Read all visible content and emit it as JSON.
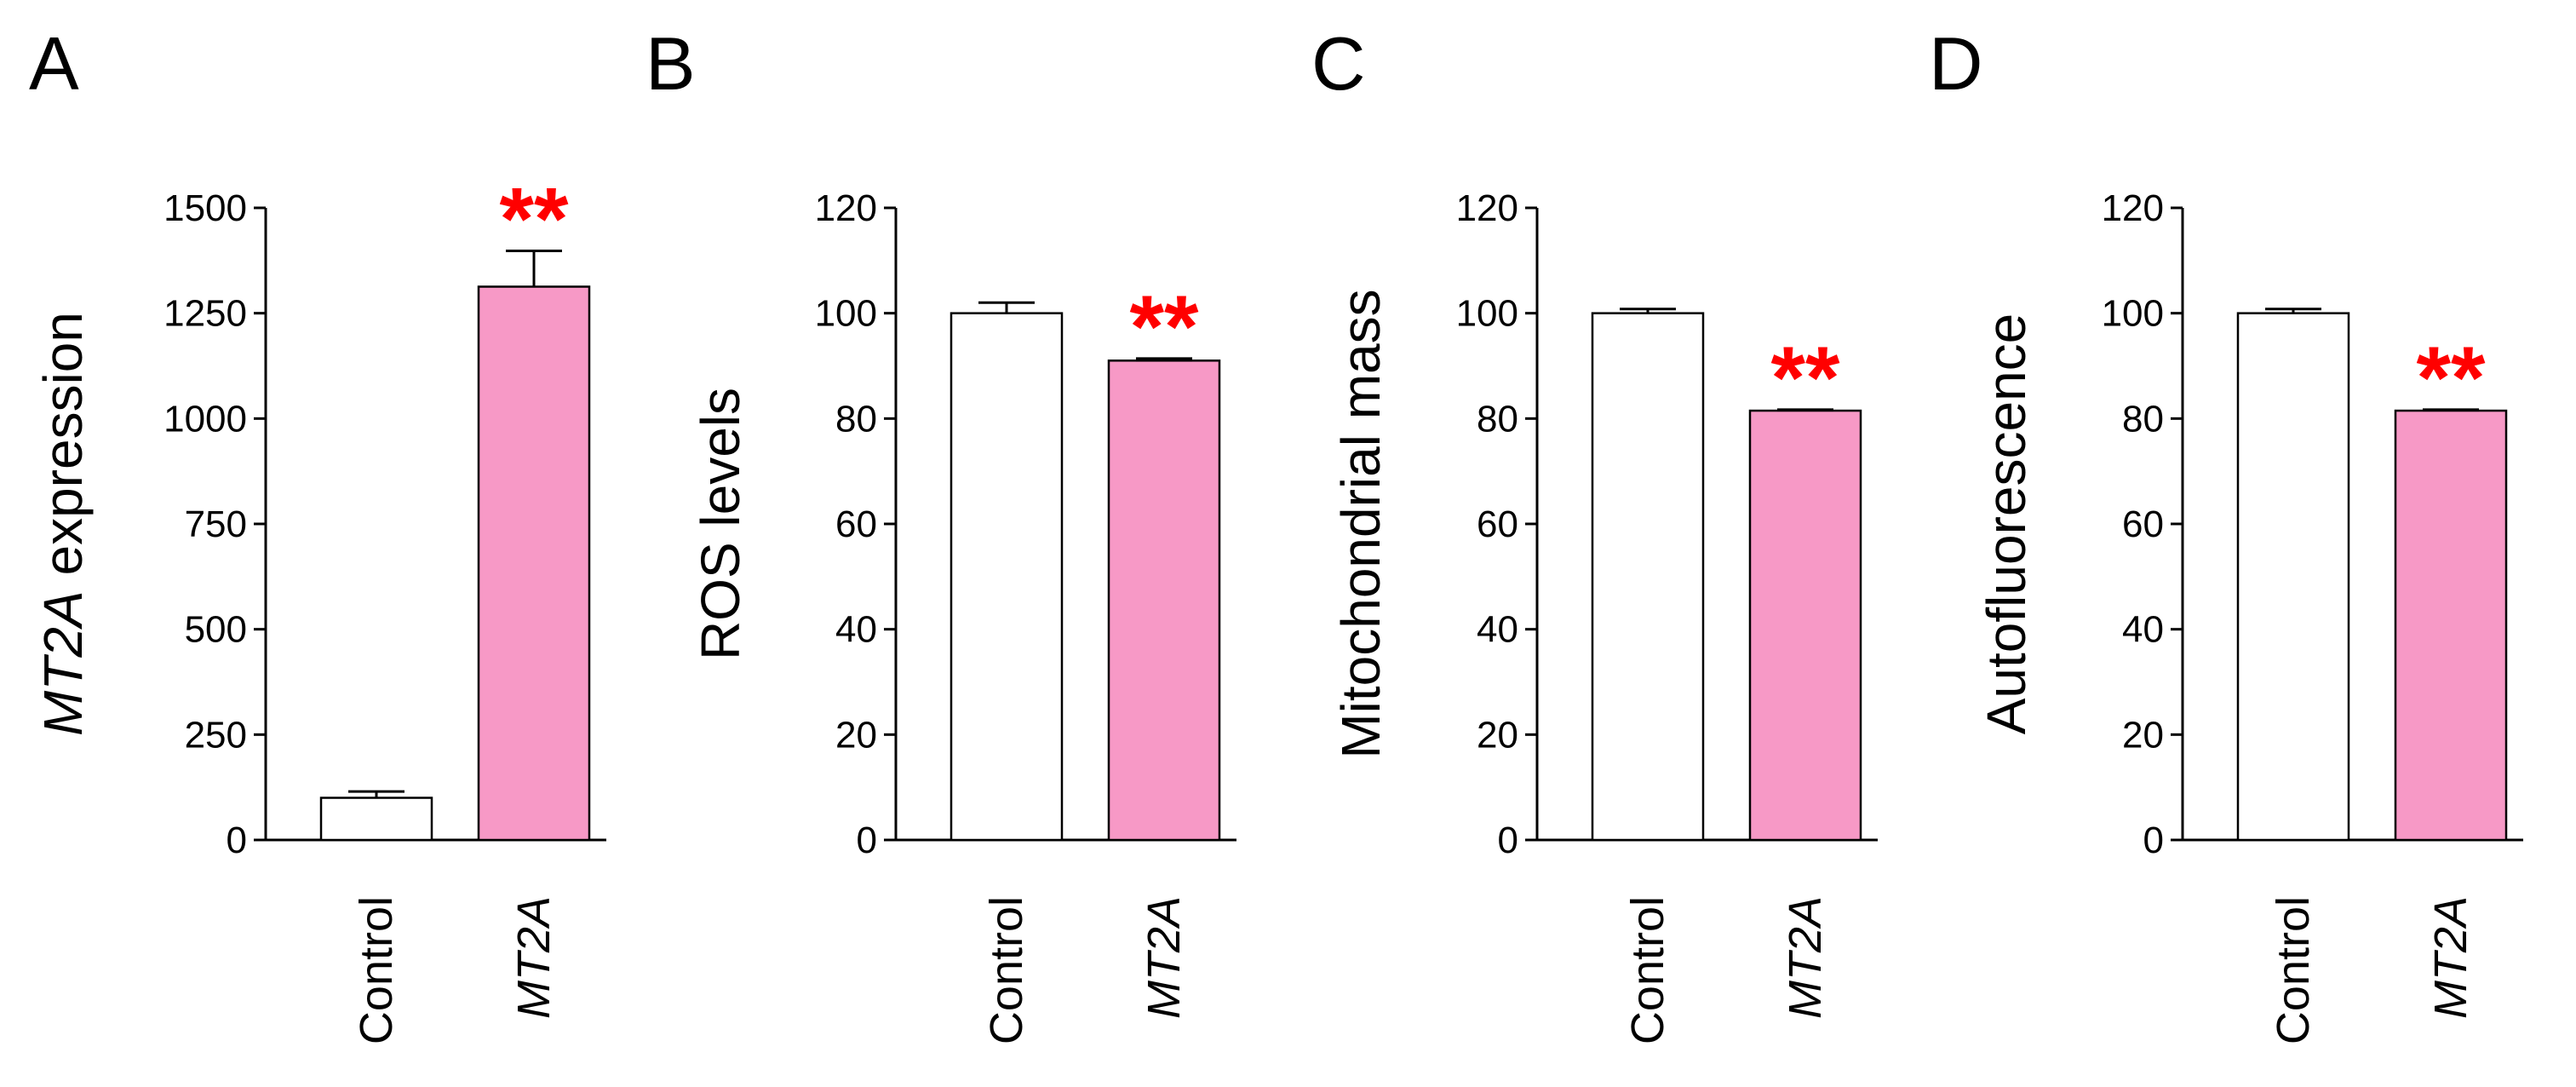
{
  "figure": {
    "panels": [
      "A",
      "B",
      "C",
      "D"
    ],
    "colors": {
      "control": "#ffffff",
      "treatment": "#f799c6",
      "significance": "#ff0000",
      "axis": "#000000"
    }
  },
  "chart_data": [
    {
      "type": "bar",
      "panel": "A",
      "title": "",
      "ylabel": "MT2A expression",
      "ylabel_italic_part": "MT2A",
      "ylabel_rest": " expression",
      "ylim": [
        0,
        1500
      ],
      "yticks": [
        0,
        250,
        500,
        750,
        1000,
        1250,
        1500
      ],
      "categories": [
        "Control",
        "MT2A"
      ],
      "values": [
        100,
        1313
      ],
      "errors": [
        15,
        85
      ],
      "significance": [
        "",
        "**"
      ]
    },
    {
      "type": "bar",
      "panel": "B",
      "title": "",
      "ylabel": "ROS levels",
      "ylim": [
        0,
        120
      ],
      "yticks": [
        0,
        20,
        40,
        60,
        80,
        100,
        120
      ],
      "categories": [
        "Control",
        "MT2A"
      ],
      "values": [
        100,
        91
      ],
      "errors": [
        2,
        0.4
      ],
      "significance": [
        "",
        "**"
      ]
    },
    {
      "type": "bar",
      "panel": "C",
      "title": "",
      "ylabel": "Mitochondrial mass",
      "ylim": [
        0,
        120
      ],
      "yticks": [
        0,
        20,
        40,
        60,
        80,
        100,
        120
      ],
      "categories": [
        "Control",
        "MT2A"
      ],
      "values": [
        100,
        81.5
      ],
      "errors": [
        0.8,
        0.2
      ],
      "significance": [
        "",
        "**"
      ]
    },
    {
      "type": "bar",
      "panel": "D",
      "title": "",
      "ylabel": "Autofluorescence",
      "ylim": [
        0,
        120
      ],
      "yticks": [
        0,
        20,
        40,
        60,
        80,
        100,
        120
      ],
      "categories": [
        "Control",
        "MT2A"
      ],
      "values": [
        100,
        81.5
      ],
      "errors": [
        0.8,
        0.2
      ],
      "significance": [
        "",
        "**"
      ]
    }
  ]
}
